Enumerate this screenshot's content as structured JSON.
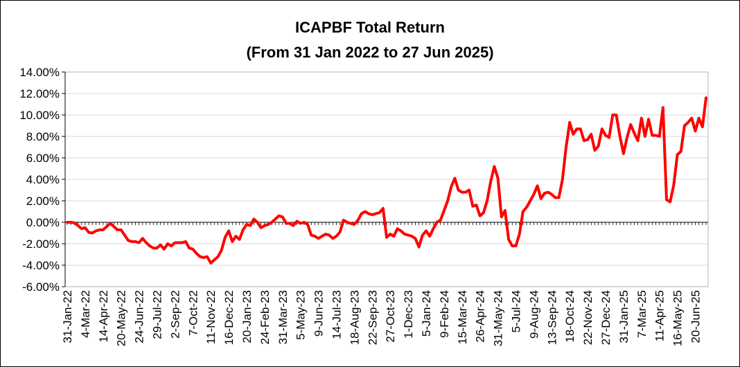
{
  "chart_data": {
    "type": "line",
    "title": "ICAPBF Total Return",
    "subtitle": "(From 31 Jan 2022 to 27 Jun 2025)",
    "xlabel": "",
    "ylabel": "",
    "ylim": [
      -6,
      14
    ],
    "y_ticks": [
      "14.00%",
      "12.00%",
      "10.00%",
      "8.00%",
      "6.00%",
      "4.00%",
      "2.00%",
      "0.00%",
      "-2.00%",
      "-4.00%",
      "-6.00%"
    ],
    "x_ticks": [
      "31-Jan-22",
      "4-Mar-22",
      "14-Apr-22",
      "20-May-22",
      "24-Jun-22",
      "29-Jul-22",
      "2-Sep-22",
      "7-Oct-22",
      "11-Nov-22",
      "16-Dec-22",
      "20-Jan-23",
      "24-Feb-23",
      "31-Mar-23",
      "5-May-23",
      "9-Jun-23",
      "14-Jul-23",
      "18-Aug-23",
      "22-Sep-23",
      "27-Oct-23",
      "1-Dec-23",
      "5-Jan-24",
      "9-Feb-24",
      "15-Mar-24",
      "26-Apr-24",
      "31-May-24",
      "5-Jul-24",
      "9-Aug-24",
      "13-Sep-24",
      "18-Oct-24",
      "22-Nov-24",
      "27-Dec-24",
      "31-Jan-25",
      "7-Mar-25",
      "11-Apr-25",
      "16-May-25",
      "20-Jun-25"
    ],
    "grid": true,
    "legend": "none",
    "series": [
      {
        "color": "#ff0000",
        "values": [
          0.0,
          0.0,
          -0.05,
          -0.3,
          -0.6,
          -0.5,
          -0.95,
          -1.0,
          -0.8,
          -0.7,
          -0.7,
          -0.4,
          -0.1,
          -0.4,
          -0.7,
          -0.7,
          -1.2,
          -1.7,
          -1.8,
          -1.8,
          -1.9,
          -1.5,
          -1.9,
          -2.2,
          -2.4,
          -2.4,
          -2.1,
          -2.5,
          -2.0,
          -2.2,
          -1.9,
          -1.9,
          -1.9,
          -1.8,
          -2.4,
          -2.5,
          -2.9,
          -3.2,
          -3.3,
          -3.2,
          -3.8,
          -3.5,
          -3.2,
          -2.6,
          -1.4,
          -0.8,
          -1.8,
          -1.3,
          -1.6,
          -0.7,
          -0.2,
          -0.3,
          0.3,
          0.0,
          -0.5,
          -0.3,
          -0.2,
          0.0,
          0.3,
          0.6,
          0.5,
          -0.1,
          -0.1,
          -0.3,
          0.1,
          -0.1,
          0.0,
          -0.2,
          -1.2,
          -1.3,
          -1.5,
          -1.3,
          -1.1,
          -1.2,
          -1.5,
          -1.3,
          -0.9,
          0.2,
          0.0,
          -0.1,
          -0.2,
          0.2,
          0.8,
          1.0,
          0.8,
          0.7,
          0.8,
          0.9,
          1.3,
          -1.4,
          -1.1,
          -1.3,
          -0.6,
          -0.8,
          -1.1,
          -1.2,
          -1.3,
          -1.5,
          -2.3,
          -1.2,
          -0.8,
          -1.3,
          -0.6,
          0.0,
          0.2,
          1.1,
          2.0,
          3.3,
          4.1,
          3.0,
          2.8,
          2.8,
          3.0,
          1.5,
          1.6,
          0.6,
          0.9,
          2.0,
          3.8,
          5.2,
          4.1,
          0.5,
          1.1,
          -1.6,
          -2.2,
          -2.2,
          -1.1,
          1.0,
          1.4,
          2.0,
          2.6,
          3.4,
          2.2,
          2.7,
          2.8,
          2.6,
          2.3,
          2.3,
          4.0,
          7.0,
          9.3,
          8.2,
          8.7,
          8.7,
          7.6,
          7.7,
          8.2,
          6.7,
          7.1,
          8.7,
          8.1,
          7.9,
          10.0,
          10.0,
          8.0,
          6.4,
          7.9,
          9.1,
          8.3,
          7.6,
          9.7,
          8.0,
          9.6,
          8.1,
          8.1,
          8.0,
          10.7,
          2.1,
          1.9,
          3.5,
          6.3,
          6.6,
          9.0,
          9.3,
          9.7,
          8.5,
          9.7,
          8.9,
          11.6
        ]
      }
    ]
  }
}
